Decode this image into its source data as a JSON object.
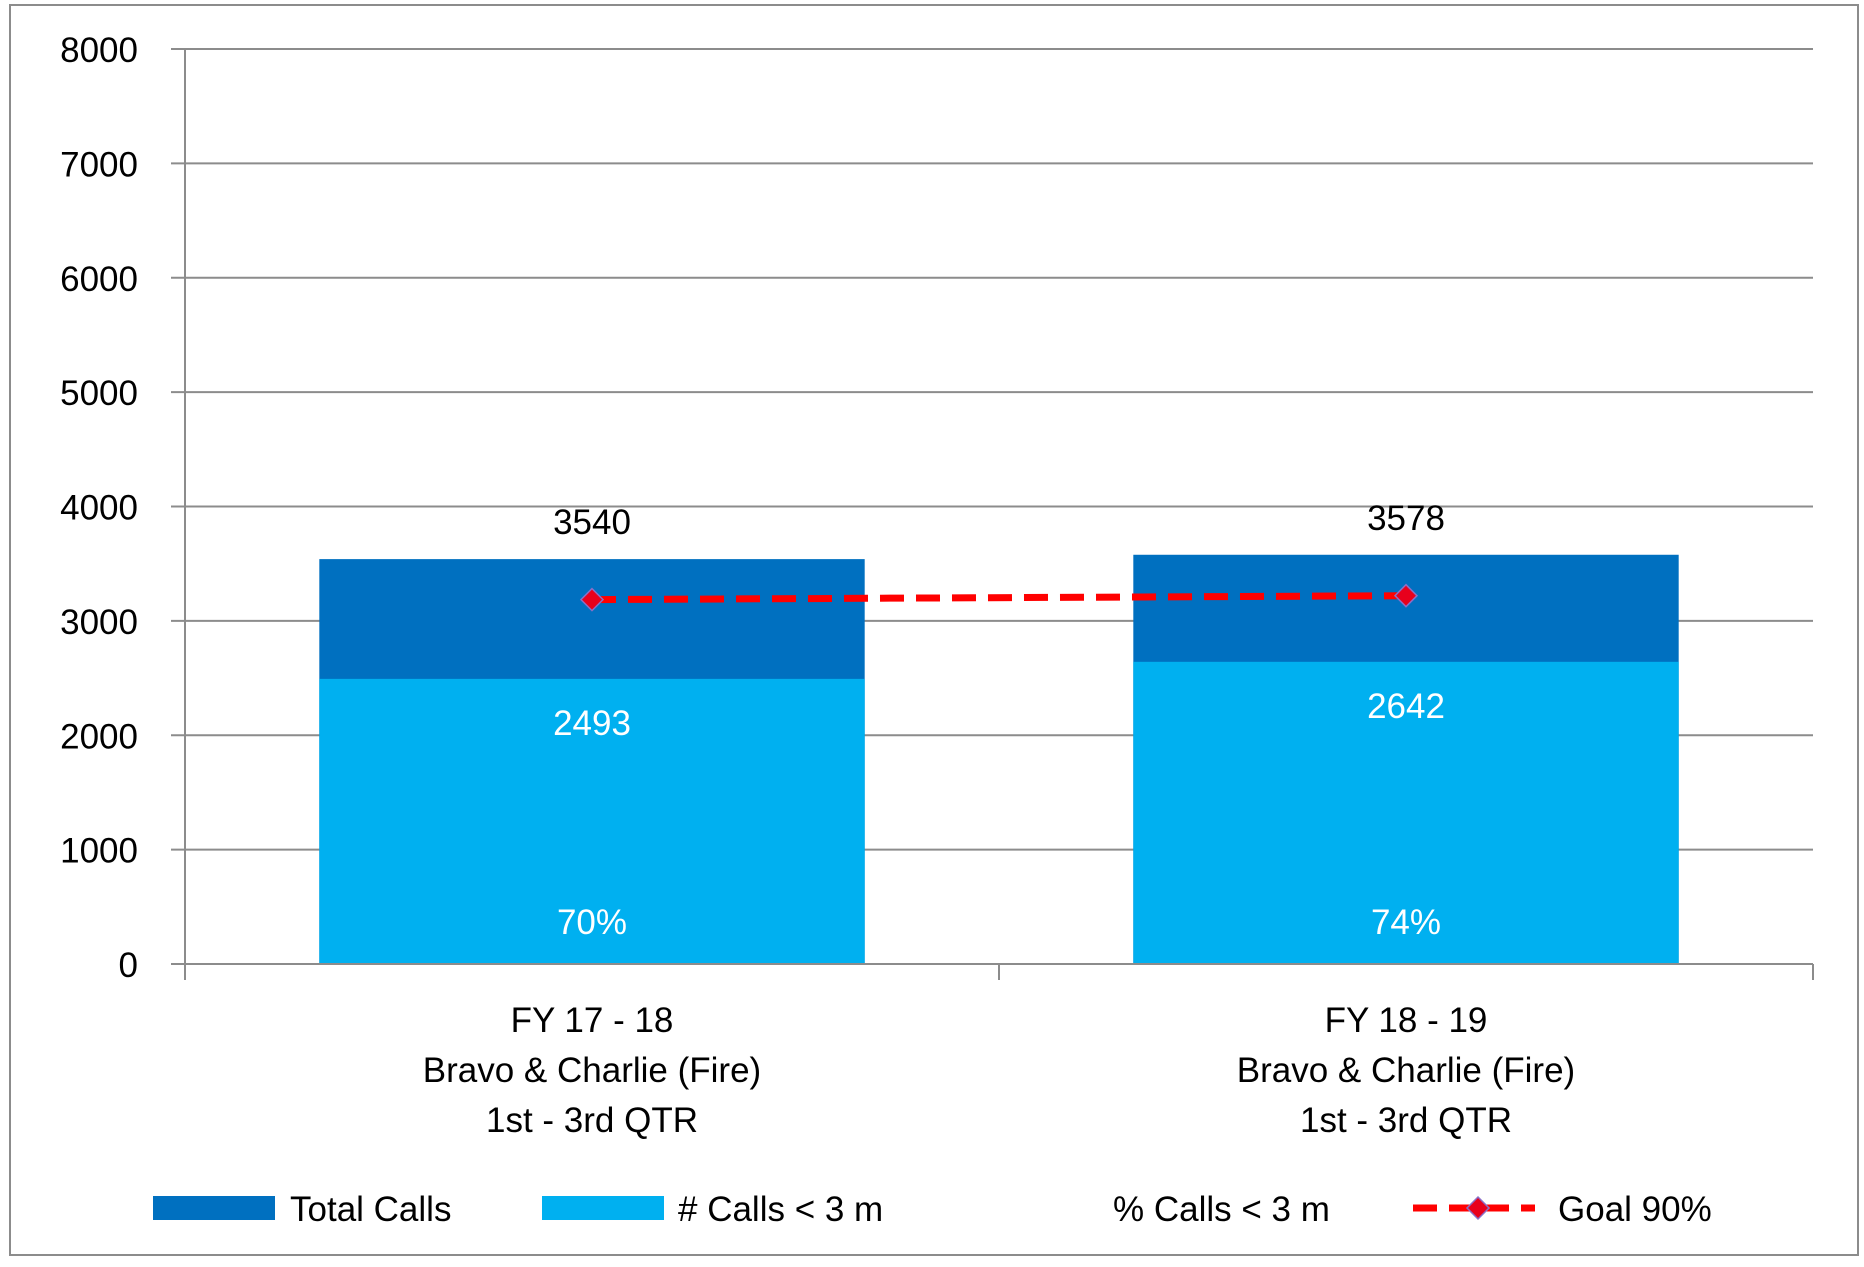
{
  "chart_data": {
    "type": "bar",
    "stacked": true,
    "categories": [
      [
        "FY 17 - 18",
        "Bravo & Charlie (Fire)",
        "1st - 3rd QTR"
      ],
      [
        "FY 18 - 19",
        "Bravo & Charlie (Fire)",
        "1st - 3rd QTR"
      ]
    ],
    "ylim": [
      0,
      8000
    ],
    "yticks": [
      0,
      1000,
      2000,
      3000,
      4000,
      5000,
      6000,
      7000,
      8000
    ],
    "grid": true,
    "legend_position": "bottom",
    "series": [
      {
        "name": "Total Calls",
        "kind": "bar",
        "color": "#0070C0",
        "values": [
          3540,
          3578
        ],
        "labels": [
          "3540",
          "3578"
        ]
      },
      {
        "name": "# Calls < 3 m",
        "kind": "bar",
        "color": "#00B0F0",
        "values": [
          2493,
          2642
        ],
        "labels": [
          "2493",
          "2642"
        ]
      },
      {
        "name": "% Calls < 3 m",
        "kind": "label",
        "values": [
          70,
          74
        ],
        "labels": [
          "70%",
          "74%"
        ]
      },
      {
        "name": "Goal 90%",
        "kind": "line",
        "color": "#FF0000",
        "marker_color": "#E8001C",
        "values": [
          3186,
          3220
        ]
      }
    ]
  }
}
